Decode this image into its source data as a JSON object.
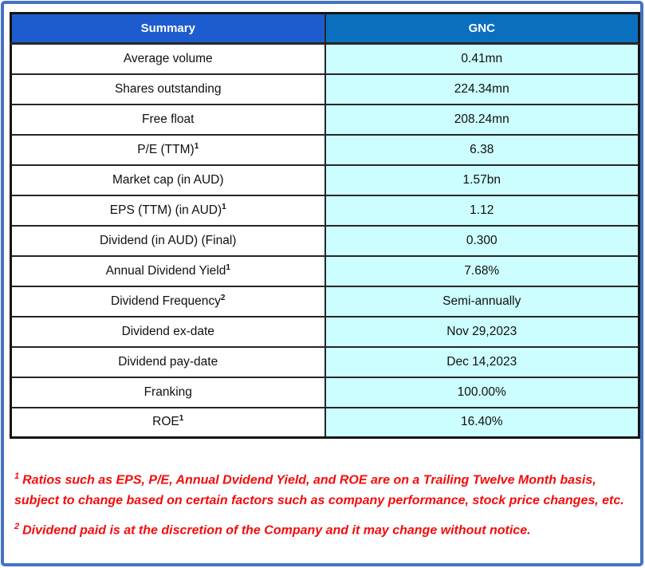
{
  "colors": {
    "frame-blue": "#4472C4",
    "header-left-bg": "#1D5CCE",
    "header-right-bg": "#0A6FBF",
    "value-cell-bg": "#CCFEFF",
    "grid-line": "#262626",
    "header-text": "#FFFFFF",
    "cell-text": "#101010",
    "note-red": "#F40B0B"
  },
  "chart_data": {
    "type": "table",
    "title": "Summary",
    "columns": [
      "Summary",
      "GNC"
    ],
    "rows": [
      {
        "label": "Average volume",
        "sup": "",
        "value": "0.41mn"
      },
      {
        "label": "Shares outstanding",
        "sup": "",
        "value": "224.34mn"
      },
      {
        "label": "Free float",
        "sup": "",
        "value": "208.24mn"
      },
      {
        "label": "P/E (TTM)",
        "sup": "1",
        "value": "6.38"
      },
      {
        "label": "Market cap (in AUD)",
        "sup": "",
        "value": "1.57bn"
      },
      {
        "label": "EPS (TTM) (in AUD)",
        "sup": "1",
        "value": "1.12"
      },
      {
        "label": "Dividend (in AUD) (Final)",
        "sup": "",
        "value": "0.300"
      },
      {
        "label": "Annual Dividend Yield",
        "sup": "1",
        "value": "7.68%"
      },
      {
        "label": "Dividend Frequency",
        "sup": "2",
        "value": "Semi-annually"
      },
      {
        "label": "Dividend ex-date",
        "sup": "",
        "value": "Nov 29,2023"
      },
      {
        "label": "Dividend pay-date",
        "sup": "",
        "value": "Dec 14,2023"
      },
      {
        "label": "Franking",
        "sup": "",
        "value": "100.00%"
      },
      {
        "label": "ROE",
        "sup": "1",
        "value": "16.40%"
      }
    ],
    "footnotes": [
      {
        "sup": "1",
        "text": "Ratios such as EPS, P/E, Annual Dvidend Yield, and ROE are on a Trailing Twelve Month basis, subject to change based on certain factors such as company performance, stock price changes, etc."
      },
      {
        "sup": "2",
        "text": "Dividend paid is at the discretion of the Company and it may change without notice."
      }
    ]
  }
}
